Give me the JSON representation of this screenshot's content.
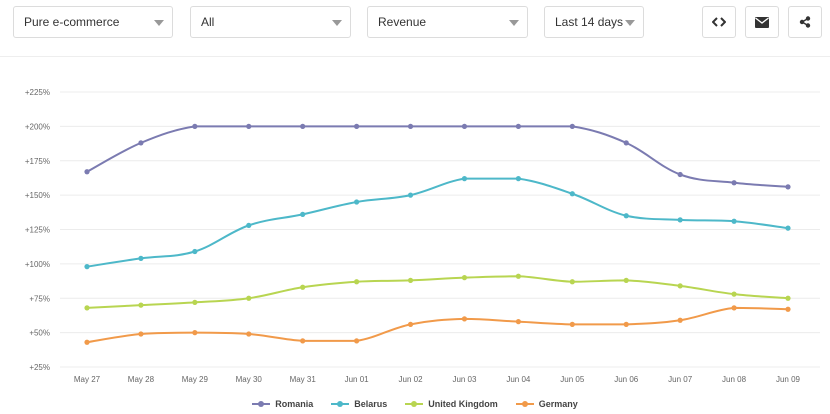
{
  "filters": {
    "site_type": "Pure e-commerce",
    "segment": "All",
    "metric": "Revenue",
    "period": "Last 14 days"
  },
  "actions": {
    "embed_icon": "code-icon",
    "email_icon": "envelope-icon",
    "share_icon": "share-icon"
  },
  "chart_data": {
    "type": "line",
    "categories": [
      "May 27",
      "May 28",
      "May 29",
      "May 30",
      "May 31",
      "Jun 01",
      "Jun 02",
      "Jun 03",
      "Jun 04",
      "Jun 05",
      "Jun 06",
      "Jun 07",
      "Jun 08",
      "Jun 09"
    ],
    "y_ticks": [
      "+25%",
      "+50%",
      "+75%",
      "+100%",
      "+125%",
      "+150%",
      "+175%",
      "+200%",
      "+225%"
    ],
    "ylim": [
      25,
      225
    ],
    "grid": true,
    "legend_position": "bottom",
    "series": [
      {
        "name": "Romania",
        "color": "#7b7bb1",
        "values": [
          167,
          188,
          200,
          200,
          200,
          200,
          200,
          200,
          200,
          200,
          188,
          165,
          159,
          156
        ]
      },
      {
        "name": "Belarus",
        "color": "#4db8c9",
        "values": [
          98,
          104,
          109,
          128,
          136,
          145,
          150,
          162,
          162,
          151,
          135,
          132,
          131,
          126
        ]
      },
      {
        "name": "United Kingdom",
        "color": "#b8d551",
        "values": [
          68,
          70,
          72,
          75,
          83,
          87,
          88,
          90,
          91,
          87,
          88,
          84,
          78,
          75
        ]
      },
      {
        "name": "Germany",
        "color": "#f19a4a",
        "values": [
          43,
          49,
          50,
          49,
          44,
          44,
          56,
          60,
          58,
          56,
          56,
          59,
          68,
          67
        ]
      }
    ]
  }
}
